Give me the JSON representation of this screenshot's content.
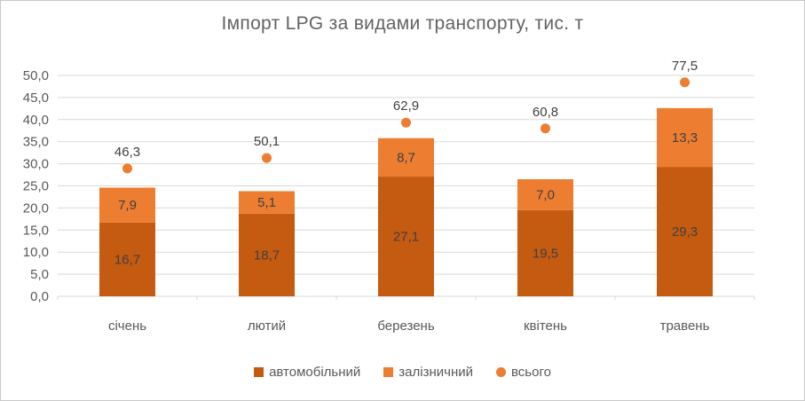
{
  "chart_data": {
    "type": "bar",
    "title": "Імпорт LPG за видами транспорту, тис. т",
    "categories": [
      "січень",
      "лютий",
      "березень",
      "квітень",
      "травень"
    ],
    "series": [
      {
        "name": "автомобільний",
        "kind": "bar-stacked",
        "color": "#C55A11",
        "values": [
          16.7,
          18.7,
          27.1,
          19.5,
          29.3
        ],
        "labels": [
          "16,7",
          "18,7",
          "27,1",
          "19,5",
          "29,3"
        ]
      },
      {
        "name": "залізничний",
        "kind": "bar-stacked",
        "color": "#ED7D31",
        "values": [
          7.9,
          5.1,
          8.7,
          7.0,
          13.3
        ],
        "labels": [
          "7,9",
          "5,1",
          "8,7",
          "7,0",
          "13,3"
        ]
      },
      {
        "name": "всього",
        "kind": "scatter",
        "color": "#ED7D31",
        "values": [
          46.3,
          50.1,
          62.9,
          60.8,
          77.5
        ],
        "labels": [
          "46,3",
          "50,1",
          "62,9",
          "60,8",
          "77,5"
        ]
      }
    ],
    "y_axis": {
      "min": 0,
      "max": 50,
      "step": 5,
      "tick_labels": [
        "50,0",
        "45,0",
        "40,0",
        "35,0",
        "30,0",
        "25,0",
        "20,0",
        "15,0",
        "10,0",
        "5,0",
        "0,0"
      ]
    },
    "secondary_axis": {
      "min": 0,
      "max": 80
    },
    "grid": true,
    "legend_position": "bottom",
    "colors": {
      "gridline": "#D9D9D9",
      "axis_text": "#595959",
      "data_label": "#404040",
      "title_text": "#636363"
    }
  }
}
